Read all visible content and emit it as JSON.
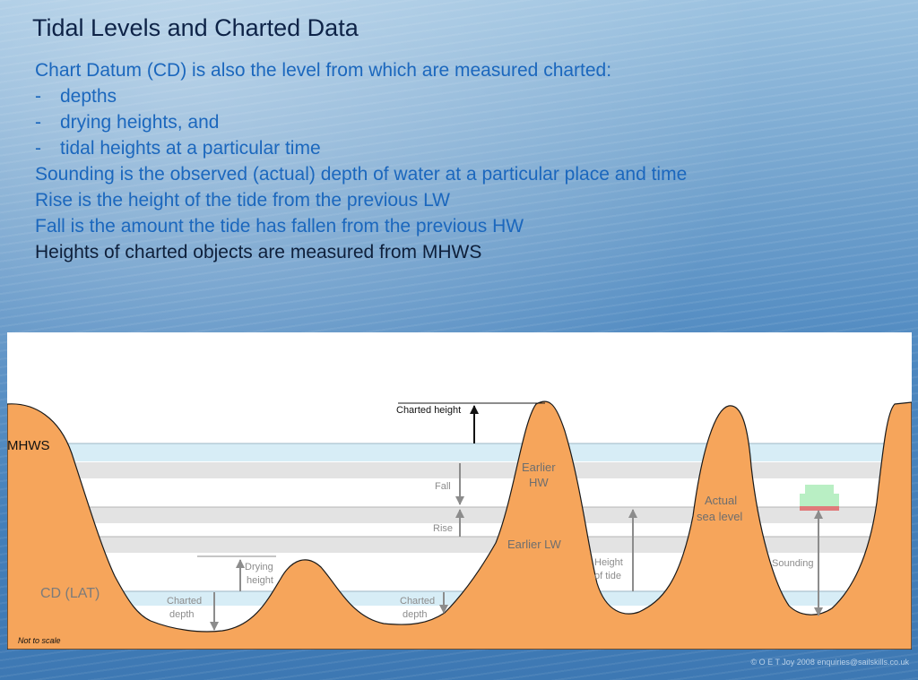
{
  "title": "Tidal Levels and Charted Data",
  "lines": [
    {
      "dash": "",
      "text": "Chart Datum (CD) is also the level from which are measured charted:"
    },
    {
      "dash": "-",
      "text": "depths"
    },
    {
      "dash": "-",
      "text": "drying heights, and"
    },
    {
      "dash": "-",
      "text": "tidal heights at a particular time"
    },
    {
      "dash": "",
      "text": "Sounding is the observed (actual) depth of water at a particular place and time"
    },
    {
      "dash": "",
      "text": "Rise is the height of the tide from the previous LW"
    },
    {
      "dash": "",
      "text": "Fall is the amount the tide has fallen from the previous HW"
    },
    {
      "dash": "",
      "text": "Heights of charted objects are measured from MHWS"
    }
  ],
  "diagram": {
    "mhws": "MHWS",
    "cd": "CD (LAT)",
    "charted_height": "Charted height",
    "fall": "Fall",
    "rise": "Rise",
    "earlier_hw_1": "Earlier",
    "earlier_hw_2": "HW",
    "earlier_lw": "Earlier LW",
    "drying_1": "Drying",
    "drying_2": "height",
    "charted_depth_a_1": "Charted",
    "charted_depth_a_2": "depth",
    "charted_depth_b_1": "Charted",
    "charted_depth_b_2": "depth",
    "height_of_tide_1": "Height",
    "height_of_tide_2": "of tide",
    "actual_1": "Actual",
    "actual_2": "sea level",
    "sounding": "Sounding",
    "not_to_scale": "Not to scale"
  },
  "copyright": "© O E T Joy 2008 enquiries@sailskills.co.uk",
  "colors": {
    "land": "#f6a55b",
    "water_band": "#d7edf6",
    "grey_band": "#e3e3e3",
    "arrow": "#8c8c8c",
    "boat_top": "#b9efc4",
    "boat_hull": "#e07a7a"
  }
}
